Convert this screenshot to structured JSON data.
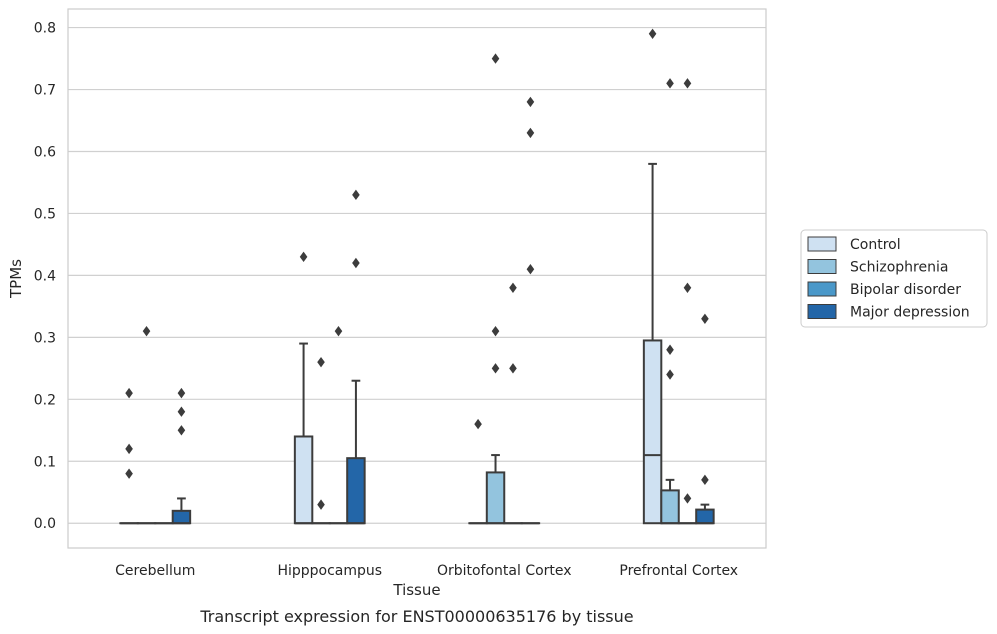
{
  "chart_data": {
    "type": "box",
    "caption": "Transcript expression for ENST00000635176 by tissue",
    "xlabel": "Tissue",
    "ylabel": "TPMs",
    "ylim": [
      -0.04,
      0.83
    ],
    "yticks": [
      "0.0",
      "0.1",
      "0.2",
      "0.3",
      "0.4",
      "0.5",
      "0.6",
      "0.7",
      "0.8"
    ],
    "grid": "horizontal",
    "legend_position": "right",
    "categories": [
      "Cerebellum",
      "Hipppocampus",
      "Orbitofontal Cortex",
      "Prefrontal Cortex"
    ],
    "series": [
      {
        "name": "Control",
        "color": "#cfe1f2",
        "boxes": [
          {
            "q1": 0,
            "median": 0,
            "q3": 0,
            "whisker_low": 0,
            "whisker_high": 0,
            "outliers": [
              0.08,
              0.12,
              0.21
            ]
          },
          {
            "q1": 0,
            "median": 0,
            "q3": 0.14,
            "whisker_low": 0,
            "whisker_high": 0.29,
            "outliers": [
              0.43
            ]
          },
          {
            "q1": 0,
            "median": 0,
            "q3": 0,
            "whisker_low": 0,
            "whisker_high": 0,
            "outliers": [
              0.16
            ]
          },
          {
            "q1": 0,
            "median": 0.11,
            "q3": 0.295,
            "whisker_low": 0,
            "whisker_high": 0.58,
            "outliers": [
              0.79
            ]
          }
        ]
      },
      {
        "name": "Schizophrenia",
        "color": "#93c4de",
        "boxes": [
          {
            "q1": 0,
            "median": 0,
            "q3": 0,
            "whisker_low": 0,
            "whisker_high": 0,
            "outliers": [
              0.31
            ]
          },
          {
            "q1": 0,
            "median": 0,
            "q3": 0,
            "whisker_low": 0,
            "whisker_high": 0,
            "outliers": [
              0.03,
              0.26
            ]
          },
          {
            "q1": 0,
            "median": 0,
            "q3": 0.082,
            "whisker_low": 0,
            "whisker_high": 0.11,
            "outliers": [
              0.25,
              0.31,
              0.75
            ]
          },
          {
            "q1": 0,
            "median": 0,
            "q3": 0.053,
            "whisker_low": 0,
            "whisker_high": 0.07,
            "outliers": [
              0.24,
              0.28,
              0.71
            ]
          }
        ]
      },
      {
        "name": "Bipolar disorder",
        "color": "#4a98c9",
        "boxes": [
          {
            "q1": 0,
            "median": 0,
            "q3": 0,
            "whisker_low": 0,
            "whisker_high": 0,
            "outliers": []
          },
          {
            "q1": 0,
            "median": 0,
            "q3": 0,
            "whisker_low": 0,
            "whisker_high": 0,
            "outliers": [
              0.31
            ]
          },
          {
            "q1": 0,
            "median": 0,
            "q3": 0,
            "whisker_low": 0,
            "whisker_high": 0,
            "outliers": [
              0.25,
              0.38
            ]
          },
          {
            "q1": 0,
            "median": 0,
            "q3": 0,
            "whisker_low": 0,
            "whisker_high": 0,
            "outliers": [
              0.04,
              0.38,
              0.71
            ]
          }
        ]
      },
      {
        "name": "Major depression",
        "color": "#2366a8",
        "boxes": [
          {
            "q1": 0,
            "median": 0,
            "q3": 0.02,
            "whisker_low": 0,
            "whisker_high": 0.04,
            "outliers": [
              0.15,
              0.18,
              0.21
            ]
          },
          {
            "q1": 0,
            "median": 0,
            "q3": 0.105,
            "whisker_low": 0,
            "whisker_high": 0.23,
            "outliers": [
              0.42,
              0.53
            ]
          },
          {
            "q1": 0,
            "median": 0,
            "q3": 0,
            "whisker_low": 0,
            "whisker_high": 0,
            "outliers": [
              0.41,
              0.63,
              0.68
            ]
          },
          {
            "q1": 0,
            "median": 0,
            "q3": 0.022,
            "whisker_low": 0,
            "whisker_high": 0.03,
            "outliers": [
              0.07,
              0.33
            ]
          }
        ]
      }
    ]
  }
}
